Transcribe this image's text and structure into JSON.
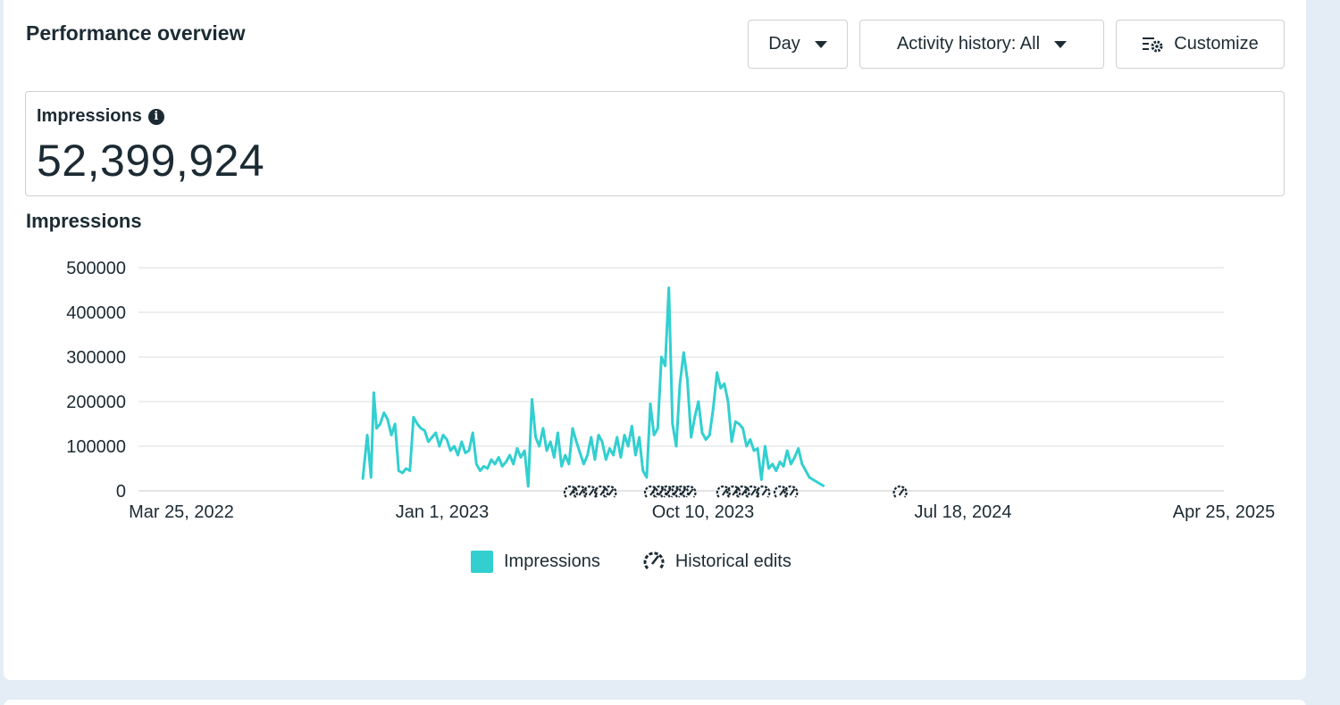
{
  "header": {
    "title": "Performance overview",
    "day_label": "Day",
    "activity_label": "Activity history: All",
    "customize_label": "Customize"
  },
  "metric": {
    "label": "Impressions",
    "value": "52,399,924",
    "info_icon": "i"
  },
  "chart_title": "Impressions",
  "legend": {
    "series_label": "Impressions",
    "edits_label": "Historical edits"
  },
  "colors": {
    "series": "#32cfd0",
    "grid": "#dadde1",
    "text": "#1c2b33"
  },
  "chart_data": {
    "type": "line",
    "title": "Impressions",
    "x_ticks": [
      "Mar 25, 2022",
      "Jan 1, 2023",
      "Oct 10, 2023",
      "Jul 18, 2024",
      "Apr 25, 2025"
    ],
    "y_ticks": [
      "500000",
      "400000",
      "300000",
      "200000",
      "100000",
      "0"
    ],
    "ylim": [
      0,
      500000
    ],
    "xlim": [
      "2022-03-25",
      "2025-04-25"
    ],
    "grid": true,
    "legend": "bottom",
    "series": [
      {
        "name": "Impressions",
        "x": [
          "2022-10-07",
          "2022-10-12",
          "2022-10-16",
          "2022-10-19",
          "2022-10-22",
          "2022-10-26",
          "2022-10-30",
          "2022-11-03",
          "2022-11-07",
          "2022-11-11",
          "2022-11-15",
          "2022-11-19",
          "2022-11-23",
          "2022-11-27",
          "2022-12-01",
          "2022-12-05",
          "2022-12-09",
          "2022-12-13",
          "2022-12-17",
          "2022-12-21",
          "2022-12-25",
          "2022-12-29",
          "2023-01-02",
          "2023-01-06",
          "2023-01-10",
          "2023-01-14",
          "2023-01-18",
          "2023-01-22",
          "2023-01-26",
          "2023-01-30",
          "2023-02-03",
          "2023-02-07",
          "2023-02-11",
          "2023-02-15",
          "2023-02-19",
          "2023-02-23",
          "2023-02-27",
          "2023-03-03",
          "2023-03-07",
          "2023-03-11",
          "2023-03-15",
          "2023-03-19",
          "2023-03-23",
          "2023-03-27",
          "2023-03-31",
          "2023-04-04",
          "2023-04-08",
          "2023-04-12",
          "2023-04-16",
          "2023-04-20",
          "2023-04-24",
          "2023-04-28",
          "2023-05-02",
          "2023-05-06",
          "2023-05-10",
          "2023-05-14",
          "2023-05-18",
          "2023-05-22",
          "2023-05-26",
          "2023-05-30",
          "2023-06-03",
          "2023-06-07",
          "2023-06-11",
          "2023-06-15",
          "2023-06-19",
          "2023-06-23",
          "2023-06-27",
          "2023-07-01",
          "2023-07-05",
          "2023-07-09",
          "2023-07-13",
          "2023-07-17",
          "2023-07-21",
          "2023-07-25",
          "2023-07-29",
          "2023-08-02",
          "2023-08-06",
          "2023-08-10",
          "2023-08-14",
          "2023-08-18",
          "2023-08-22",
          "2023-08-26",
          "2023-08-30",
          "2023-09-03",
          "2023-09-07",
          "2023-09-11",
          "2023-09-15",
          "2023-09-19",
          "2023-09-23",
          "2023-09-27",
          "2023-10-01",
          "2023-10-05",
          "2023-10-09",
          "2023-10-13",
          "2023-10-17",
          "2023-10-21",
          "2023-10-25",
          "2023-10-29",
          "2023-11-02",
          "2023-11-06",
          "2023-11-10",
          "2023-11-14",
          "2023-11-18",
          "2023-11-22",
          "2023-11-26",
          "2023-11-30",
          "2023-12-04",
          "2023-12-08",
          "2023-12-12",
          "2023-12-16",
          "2023-12-20",
          "2023-12-24",
          "2023-12-28",
          "2024-01-01",
          "2024-01-05",
          "2024-01-09",
          "2024-01-13",
          "2024-01-17",
          "2024-01-21",
          "2024-01-25",
          "2024-01-29",
          "2024-02-02",
          "2024-02-06",
          "2024-02-10",
          "2024-02-14",
          "2024-02-18"
        ],
        "values": [
          25000,
          125000,
          30000,
          220000,
          140000,
          150000,
          175000,
          160000,
          125000,
          150000,
          45000,
          40000,
          50000,
          45000,
          165000,
          150000,
          140000,
          135000,
          110000,
          120000,
          130000,
          100000,
          125000,
          115000,
          90000,
          100000,
          80000,
          110000,
          85000,
          90000,
          130000,
          60000,
          45000,
          55000,
          50000,
          70000,
          60000,
          75000,
          55000,
          65000,
          80000,
          60000,
          95000,
          75000,
          90000,
          10000,
          205000,
          120000,
          100000,
          140000,
          90000,
          110000,
          75000,
          130000,
          55000,
          80000,
          60000,
          140000,
          110000,
          85000,
          60000,
          80000,
          120000,
          70000,
          125000,
          110000,
          70000,
          95000,
          80000,
          120000,
          75000,
          125000,
          100000,
          145000,
          80000,
          120000,
          45000,
          30000,
          195000,
          125000,
          140000,
          300000,
          280000,
          455000,
          150000,
          100000,
          240000,
          310000,
          250000,
          120000,
          165000,
          200000,
          130000,
          115000,
          125000,
          185000,
          265000,
          230000,
          240000,
          200000,
          110000,
          155000,
          150000,
          140000,
          100000,
          115000,
          90000,
          95000,
          25000,
          100000,
          50000,
          60000,
          45000,
          65000,
          55000,
          90000,
          60000,
          75000,
          95000,
          60000,
          45000,
          30000,
          25000,
          20000,
          15000,
          10000
        ],
        "series_x_min": "2022-10-07"
      }
    ],
    "historical_edits": [
      "2023-05-20",
      "2023-05-30",
      "2023-06-10",
      "2023-06-22",
      "2023-07-01",
      "2023-08-15",
      "2023-08-24",
      "2023-09-01",
      "2023-09-09",
      "2023-09-17",
      "2023-09-25",
      "2023-11-01",
      "2023-11-12",
      "2023-11-22",
      "2023-12-02",
      "2023-12-14",
      "2024-01-02",
      "2024-01-13",
      "2024-05-10"
    ]
  }
}
